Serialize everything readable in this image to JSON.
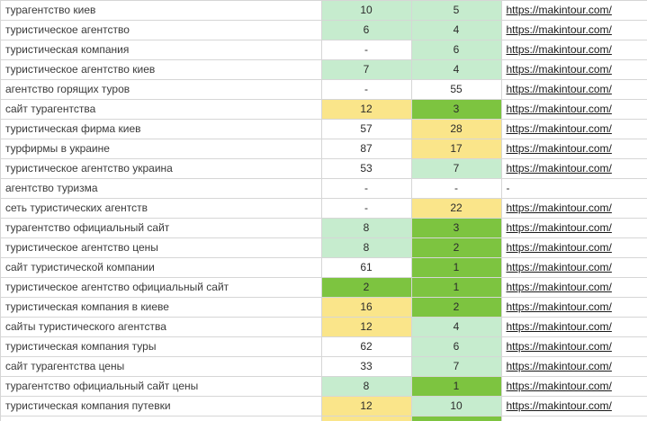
{
  "colors": {
    "light_green_bg": "#c6ecce",
    "light_green_text": "#1a7431",
    "yellow_bg": "#fae58a",
    "yellow_text": "#9c6500",
    "bright_green_bg": "#7dc440",
    "gridline": "#d6d6d6",
    "link_text": "#1a1a1a"
  },
  "table": {
    "rows": [
      {
        "kw": "турагентство киев",
        "v1": "10",
        "s1": "lg",
        "v2": "5",
        "s2": "lg",
        "url": "https://makintour.com/"
      },
      {
        "kw": "туристическое агентство",
        "v1": "6",
        "s1": "lg",
        "v2": "4",
        "s2": "lg",
        "url": "https://makintour.com/"
      },
      {
        "kw": "туристическая компания",
        "v1": "-",
        "s1": "w",
        "v2": "6",
        "s2": "lg",
        "url": "https://makintour.com/"
      },
      {
        "kw": "туристическое агентство киев",
        "v1": "7",
        "s1": "lg",
        "v2": "4",
        "s2": "lg",
        "url": "https://makintour.com/"
      },
      {
        "kw": "агентство горящих туров",
        "v1": "-",
        "s1": "w",
        "v2": "55",
        "s2": "w",
        "url": "https://makintour.com/"
      },
      {
        "kw": "сайт турагентства",
        "v1": "12",
        "s1": "y",
        "v2": "3",
        "s2": "bg",
        "url": "https://makintour.com/"
      },
      {
        "kw": "туристическая фирма киев",
        "v1": "57",
        "s1": "w",
        "v2": "28",
        "s2": "y",
        "url": "https://makintour.com/"
      },
      {
        "kw": "турфирмы в украине",
        "v1": "87",
        "s1": "w",
        "v2": "17",
        "s2": "y",
        "url": "https://makintour.com/"
      },
      {
        "kw": "туристическое агентство украина",
        "v1": "53",
        "s1": "w",
        "v2": "7",
        "s2": "lg",
        "url": "https://makintour.com/"
      },
      {
        "kw": "агентство туризма",
        "v1": "-",
        "s1": "w",
        "v2": "-",
        "s2": "w",
        "url": "-"
      },
      {
        "kw": "сеть туристических агентств",
        "v1": "-",
        "s1": "w",
        "v2": "22",
        "s2": "y",
        "url": "https://makintour.com/"
      },
      {
        "kw": "турагентство официальный сайт",
        "v1": "8",
        "s1": "lg",
        "v2": "3",
        "s2": "bg",
        "url": "https://makintour.com/"
      },
      {
        "kw": "туристическое агентство цены",
        "v1": "8",
        "s1": "lg",
        "v2": "2",
        "s2": "bg",
        "url": "https://makintour.com/"
      },
      {
        "kw": "сайт туристической компании",
        "v1": "61",
        "s1": "w",
        "v2": "1",
        "s2": "bg",
        "url": "https://makintour.com/"
      },
      {
        "kw": "туристическое агентство официальный сайт",
        "v1": "2",
        "s1": "bg",
        "v2": "1",
        "s2": "bg",
        "url": "https://makintour.com/"
      },
      {
        "kw": "туристическая компания в киеве",
        "v1": "16",
        "s1": "y",
        "v2": "2",
        "s2": "bg",
        "url": "https://makintour.com/"
      },
      {
        "kw": "сайты туристического агентства",
        "v1": "12",
        "s1": "y",
        "v2": "4",
        "s2": "lg",
        "url": "https://makintour.com/"
      },
      {
        "kw": "туристическая компания туры",
        "v1": "62",
        "s1": "w",
        "v2": "6",
        "s2": "lg",
        "url": "https://makintour.com/"
      },
      {
        "kw": "сайт турагентства цены",
        "v1": "33",
        "s1": "w",
        "v2": "7",
        "s2": "lg",
        "url": "https://makintour.com/"
      },
      {
        "kw": "турагентство официальный сайт цены",
        "v1": "8",
        "s1": "lg",
        "v2": "1",
        "s2": "bg",
        "url": "https://makintour.com/"
      },
      {
        "kw": "туристическая компания путевки",
        "v1": "12",
        "s1": "y",
        "v2": "10",
        "s2": "lg",
        "url": "https://makintour.com/"
      }
    ],
    "partial_row": {
      "kw": "",
      "v1": "",
      "s1": "y",
      "v2": "",
      "s2": "bg",
      "url": ""
    }
  }
}
